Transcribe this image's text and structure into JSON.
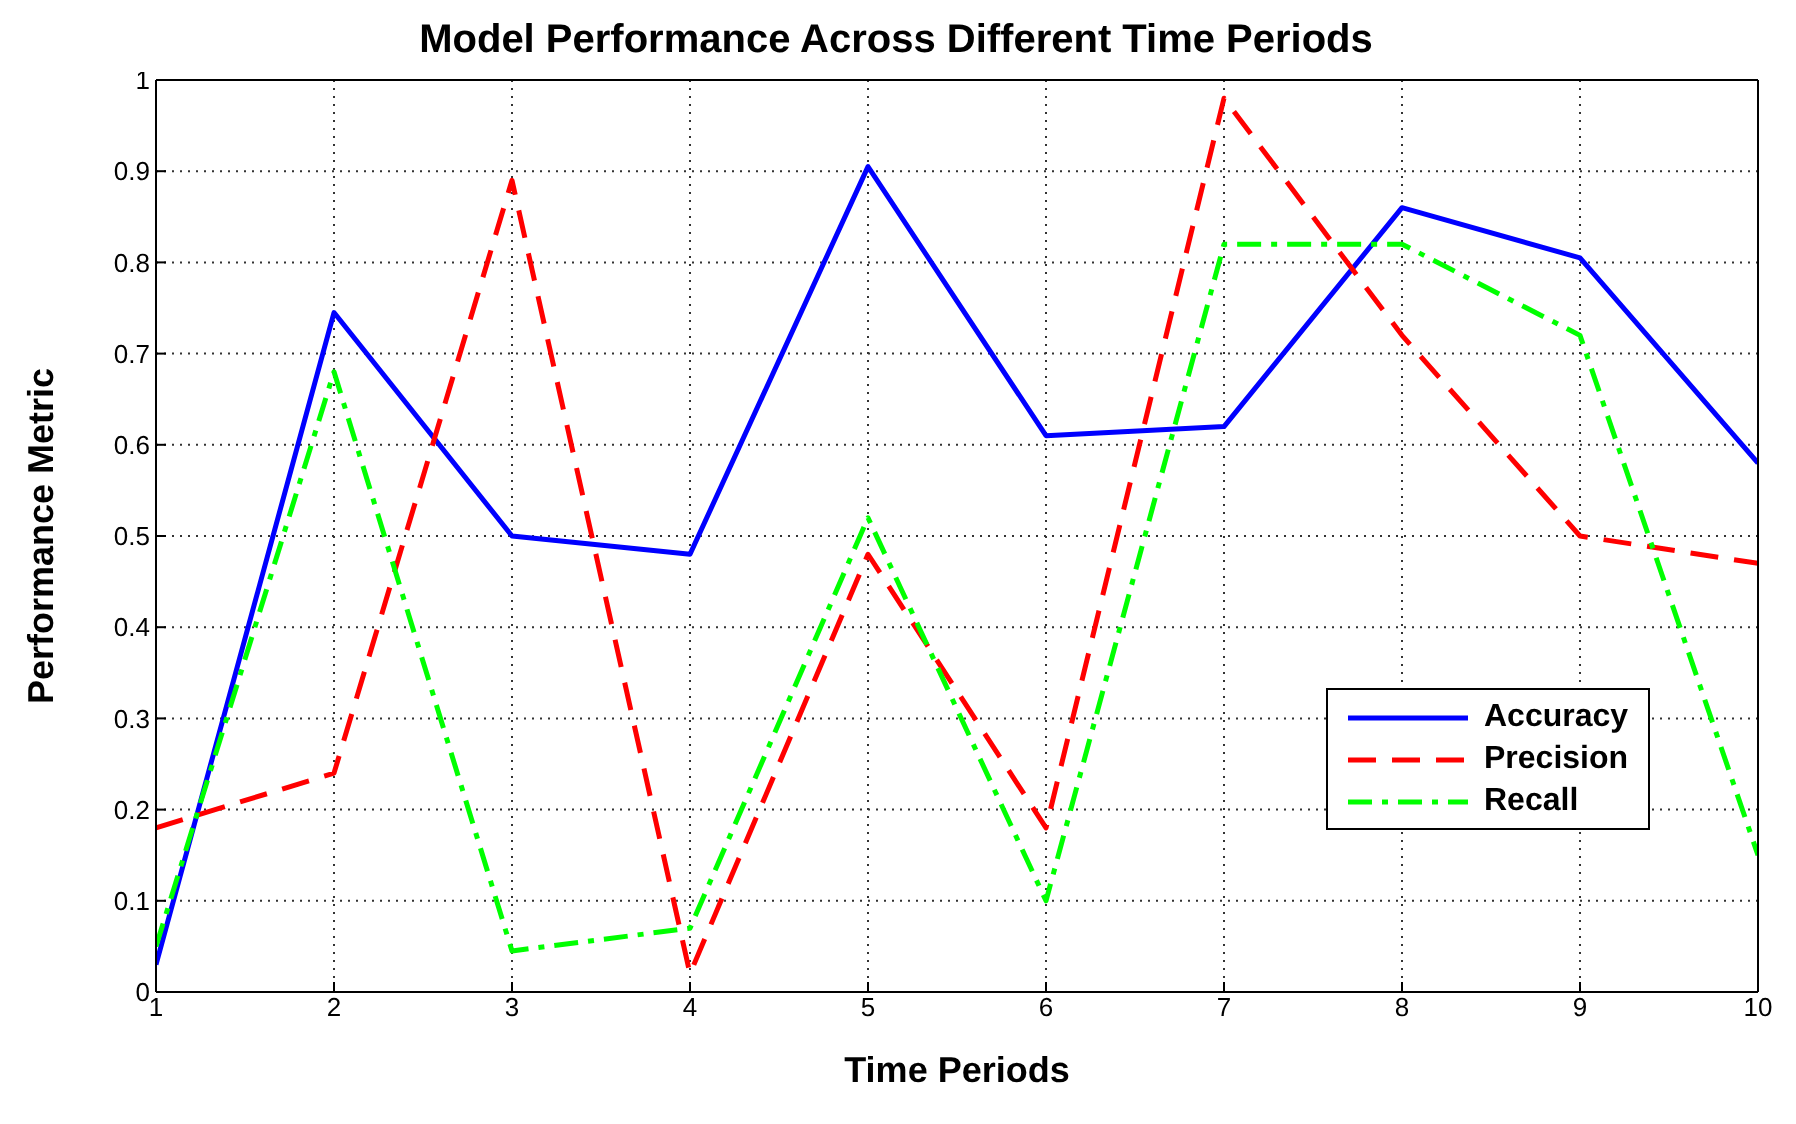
{
  "chart_data": {
    "type": "line",
    "title": "Model Performance Across Different Time Periods",
    "xlabel": "Time Periods",
    "ylabel": "Performance Metric",
    "x": [
      1,
      2,
      3,
      4,
      5,
      6,
      7,
      8,
      9,
      10
    ],
    "series": [
      {
        "name": "Accuracy",
        "color": "#0000ff",
        "line_style": "solid",
        "values": [
          0.03,
          0.745,
          0.5,
          0.48,
          0.905,
          0.61,
          0.62,
          0.86,
          0.805,
          0.58
        ]
      },
      {
        "name": "Precision",
        "color": "#ff0000",
        "line_style": "dashed",
        "values": [
          0.18,
          0.24,
          0.89,
          0.02,
          0.48,
          0.18,
          0.98,
          0.72,
          0.5,
          0.47
        ]
      },
      {
        "name": "Recall",
        "color": "#00ff00",
        "line_style": "dashdot",
        "values": [
          0.05,
          0.68,
          0.045,
          0.07,
          0.52,
          0.1,
          0.82,
          0.82,
          0.72,
          0.15
        ]
      }
    ],
    "xlim": [
      1,
      10
    ],
    "xticks": [
      1,
      2,
      3,
      4,
      5,
      6,
      7,
      8,
      9,
      10
    ],
    "ylim": [
      0,
      1
    ],
    "yticks": [
      0,
      0.1,
      0.2,
      0.3,
      0.4,
      0.5,
      0.6,
      0.7,
      0.8,
      0.9,
      1
    ],
    "grid": true,
    "legend": "right",
    "marker": "none"
  }
}
